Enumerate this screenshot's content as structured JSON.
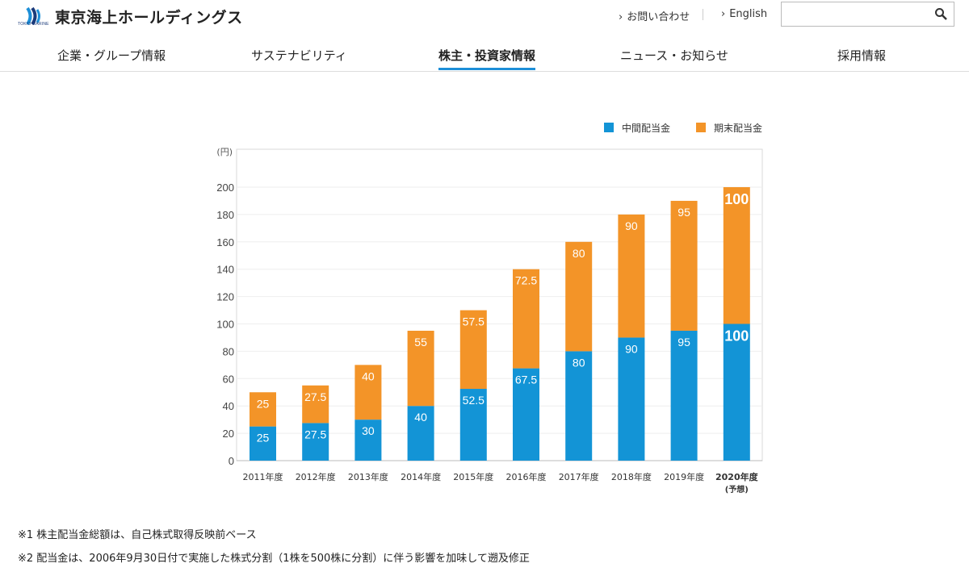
{
  "brand": {
    "name": "東京海上ホールディングス",
    "sub": "TOKIO MARINE",
    "accent": "#1d8fd8"
  },
  "utility": {
    "contact": "お問い合わせ",
    "english": "English"
  },
  "search": {
    "placeholder": ""
  },
  "nav": [
    "企業・グループ情報",
    "サステナビリティ",
    "株主・投資家情報",
    "ニュース・お知らせ",
    "採用情報"
  ],
  "chart_data": {
    "type": "bar",
    "stacked": true,
    "unit_label": "(円)",
    "categories": [
      "2011年度",
      "2012年度",
      "2013年度",
      "2014年度",
      "2015年度",
      "2016年度",
      "2017年度",
      "2018年度",
      "2019年度",
      "2020年度"
    ],
    "category_notes": [
      "",
      "",
      "",
      "",
      "",
      "",
      "",
      "",
      "",
      "(予想)"
    ],
    "series": [
      {
        "name": "中間配当金",
        "color": "#1394d6",
        "values": [
          25,
          27.5,
          30,
          40,
          52.5,
          67.5,
          80,
          90,
          95,
          100
        ]
      },
      {
        "name": "期末配当金",
        "color": "#f39428",
        "values": [
          25,
          27.5,
          40,
          55,
          57.5,
          72.5,
          80,
          90,
          95,
          100
        ]
      }
    ],
    "ylim": [
      0,
      200
    ],
    "yticks": [
      0,
      20,
      40,
      60,
      80,
      100,
      120,
      140,
      160,
      180,
      200
    ],
    "legend": "top-right",
    "grid": true
  },
  "footnotes": [
    "※1 株主配当金総額は、自己株式取得反映前ベース",
    "※2 配当金は、2006年9月30日付で実施した株式分割（1株を500株に分割）に伴う影響を加味して遡及修正"
  ]
}
